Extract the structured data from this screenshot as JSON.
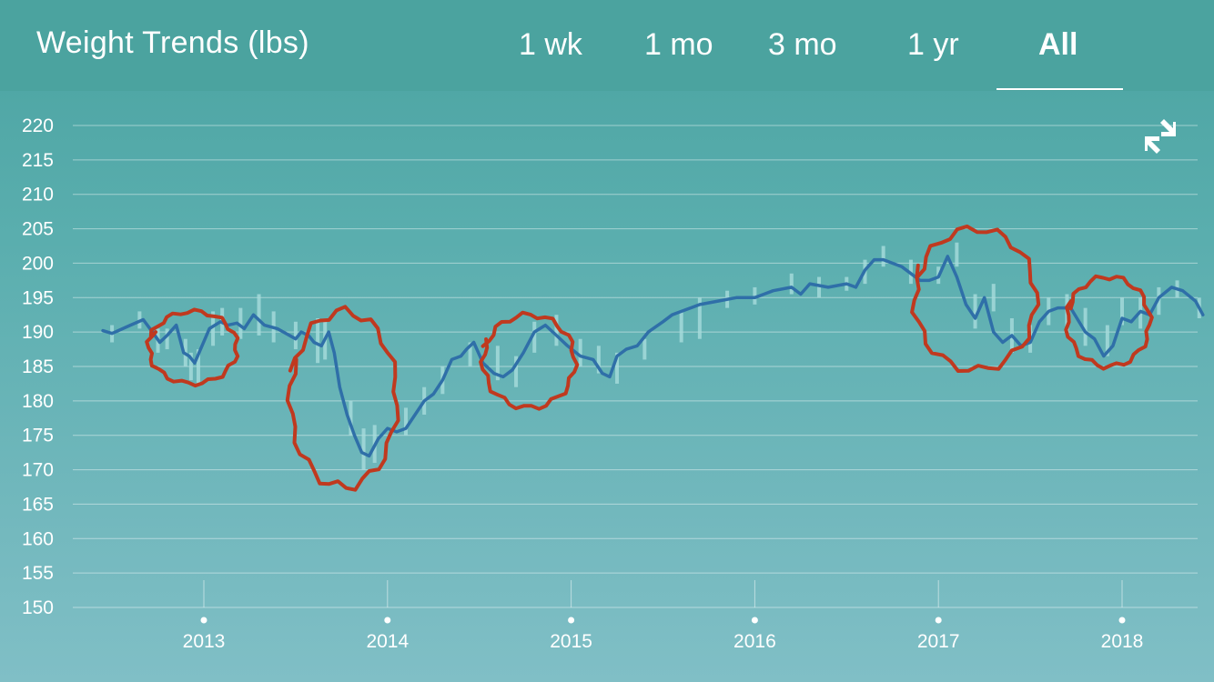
{
  "header": {
    "title": "Weight Trends (lbs)",
    "tabs": [
      {
        "label": "1 wk",
        "active": false
      },
      {
        "label": "1 mo",
        "active": false
      },
      {
        "label": "3 mo",
        "active": false
      },
      {
        "label": "1 yr",
        "active": false
      },
      {
        "label": "All",
        "active": true
      }
    ],
    "collapse_icon": "collapse-arrows-icon"
  },
  "colors": {
    "trend_line": "#2f6fa8",
    "daily_bars": "#a8dcdc",
    "annotation": "#c0391f",
    "grid": "#ffffff",
    "text": "#ffffff"
  },
  "chart_data": {
    "type": "line",
    "title": "",
    "xlabel": "",
    "ylabel": "",
    "ylim": [
      150,
      220
    ],
    "yticks": [
      150,
      155,
      160,
      165,
      170,
      175,
      180,
      185,
      190,
      195,
      200,
      205,
      210,
      215,
      220
    ],
    "xlim": [
      2012.46,
      2018.5
    ],
    "xticks": [
      {
        "value": 2013,
        "label": "2013"
      },
      {
        "value": 2014,
        "label": "2014"
      },
      {
        "value": 2015,
        "label": "2015"
      },
      {
        "value": 2016,
        "label": "2016"
      },
      {
        "value": 2017,
        "label": "2017"
      },
      {
        "value": 2018,
        "label": "2018"
      }
    ],
    "grid": true,
    "series": [
      {
        "kind": "trend",
        "x": [
          2012.45,
          2012.5,
          2012.6,
          2012.67,
          2012.72,
          2012.76,
          2012.8,
          2012.85,
          2012.89,
          2012.92,
          2012.95,
          2013.03,
          2013.09,
          2013.13,
          2013.18,
          2013.22,
          2013.27,
          2013.33,
          2013.4,
          2013.5,
          2013.53,
          2013.57,
          2013.6,
          2013.64,
          2013.68,
          2013.71,
          2013.74,
          2013.78,
          2013.82,
          2013.86,
          2013.9,
          2013.95,
          2014.0,
          2014.05,
          2014.1,
          2014.15,
          2014.2,
          2014.25,
          2014.3,
          2014.35,
          2014.4,
          2014.43,
          2014.47,
          2014.52,
          2014.58,
          2014.63,
          2014.68,
          2014.74,
          2014.8,
          2014.86,
          2014.92,
          2014.98,
          2015.05,
          2015.12,
          2015.17,
          2015.21,
          2015.25,
          2015.3,
          2015.36,
          2015.42,
          2015.5,
          2015.55,
          2015.6,
          2015.7,
          2015.8,
          2015.9,
          2016.0,
          2016.05,
          2016.1,
          2016.2,
          2016.25,
          2016.3,
          2016.4,
          2016.5,
          2016.55,
          2016.6,
          2016.65,
          2016.7,
          2016.8,
          2016.85,
          2016.9,
          2016.95,
          2017.0,
          2017.05,
          2017.1,
          2017.15,
          2017.2,
          2017.25,
          2017.3,
          2017.35,
          2017.4,
          2017.45,
          2017.5,
          2017.55,
          2017.6,
          2017.65,
          2017.72,
          2017.8,
          2017.85,
          2017.9,
          2017.95,
          2018.0,
          2018.05,
          2018.1,
          2018.15,
          2018.2,
          2018.27,
          2018.33,
          2018.4,
          2018.44
        ],
        "y": [
          190.2,
          189.8,
          191.0,
          191.8,
          190.0,
          188.5,
          189.5,
          191.0,
          187.0,
          186.5,
          185.5,
          190.5,
          191.5,
          191.0,
          191.3,
          190.5,
          192.5,
          191.0,
          190.5,
          189.0,
          190.0,
          189.5,
          188.5,
          188.0,
          190.0,
          187.0,
          182.0,
          178.0,
          175.0,
          172.5,
          172.0,
          174.5,
          176.0,
          175.5,
          176.0,
          178.0,
          180.0,
          181.0,
          183.0,
          186.0,
          186.5,
          187.5,
          188.5,
          185.5,
          184.0,
          183.5,
          184.5,
          187.0,
          190.0,
          191.0,
          189.5,
          188.0,
          186.5,
          186.0,
          184.0,
          183.5,
          186.5,
          187.5,
          188.0,
          190.0,
          191.5,
          192.5,
          193.0,
          194.0,
          194.5,
          195.0,
          195.0,
          195.5,
          196.0,
          196.5,
          195.5,
          197.0,
          196.5,
          197.0,
          196.5,
          199.0,
          200.5,
          200.5,
          199.5,
          198.5,
          197.5,
          197.5,
          198.0,
          201.0,
          198.0,
          194.0,
          192.0,
          195.0,
          190.0,
          188.5,
          189.5,
          188.0,
          188.5,
          191.5,
          193.0,
          193.5,
          193.5,
          190.0,
          189.0,
          186.5,
          188.0,
          192.0,
          191.5,
          193.0,
          192.5,
          195.0,
          196.5,
          196.0,
          194.5,
          192.5
        ]
      },
      {
        "kind": "daily",
        "x": [
          2012.5,
          2012.65,
          2012.75,
          2012.8,
          2012.9,
          2012.93,
          2012.97,
          2013.05,
          2013.1,
          2013.2,
          2013.3,
          2013.38,
          2013.5,
          2013.62,
          2013.66,
          2013.8,
          2013.87,
          2013.93,
          2014.1,
          2014.2,
          2014.3,
          2014.45,
          2014.6,
          2014.7,
          2014.8,
          2014.92,
          2015.05,
          2015.15,
          2015.25,
          2015.4,
          2015.6,
          2015.7,
          2015.85,
          2016.0,
          2016.2,
          2016.35,
          2016.5,
          2016.6,
          2016.7,
          2016.85,
          2017.0,
          2017.1,
          2017.2,
          2017.3,
          2017.4,
          2017.5,
          2017.6,
          2017.7,
          2017.8,
          2017.92,
          2018.0,
          2018.1,
          2018.2,
          2018.3,
          2018.42
        ],
        "low": [
          188.5,
          190.5,
          187.0,
          187.5,
          185.0,
          183.0,
          182.5,
          188.0,
          189.5,
          189.0,
          189.5,
          188.5,
          187.5,
          185.5,
          186.0,
          175.0,
          170.0,
          171.0,
          175.0,
          178.0,
          181.0,
          185.0,
          183.0,
          182.0,
          187.0,
          188.0,
          185.0,
          184.0,
          182.5,
          186.0,
          188.5,
          189.0,
          193.5,
          194.0,
          195.5,
          195.0,
          196.0,
          197.0,
          199.5,
          197.0,
          197.0,
          199.5,
          190.5,
          193.0,
          187.0,
          187.0,
          191.0,
          190.0,
          188.0,
          186.5,
          191.0,
          190.5,
          192.5,
          195.0,
          192.0
        ],
        "high": [
          191.0,
          193.0,
          190.5,
          190.5,
          189.0,
          187.0,
          187.5,
          193.0,
          193.5,
          193.5,
          195.5,
          193.0,
          191.5,
          192.0,
          191.5,
          180.0,
          176.0,
          176.5,
          179.0,
          182.0,
          185.0,
          188.5,
          188.0,
          186.5,
          191.5,
          192.5,
          189.0,
          188.0,
          187.0,
          189.0,
          193.0,
          195.0,
          196.0,
          196.5,
          198.5,
          198.0,
          198.0,
          200.5,
          202.5,
          200.5,
          199.5,
          203.0,
          195.5,
          197.0,
          192.0,
          191.0,
          195.0,
          195.5,
          193.5,
          191.0,
          195.0,
          195.0,
          196.5,
          197.5,
          195.0
        ]
      }
    ],
    "annotations": [
      {
        "shape": "circle",
        "x_range": [
          2012.7,
          2013.18
        ],
        "y_range": [
          182.5,
          193
        ]
      },
      {
        "shape": "circle",
        "x_range": [
          2013.47,
          2014.05
        ],
        "y_range": [
          167.5,
          193
        ]
      },
      {
        "shape": "circle",
        "x_range": [
          2014.52,
          2015.02
        ],
        "y_range": [
          179,
          192.5
        ]
      },
      {
        "shape": "circle",
        "x_range": [
          2016.87,
          2017.53
        ],
        "y_range": [
          184.5,
          205
        ]
      },
      {
        "shape": "circle",
        "x_range": [
          2017.7,
          2018.15
        ],
        "y_range": [
          185,
          198
        ]
      }
    ]
  }
}
